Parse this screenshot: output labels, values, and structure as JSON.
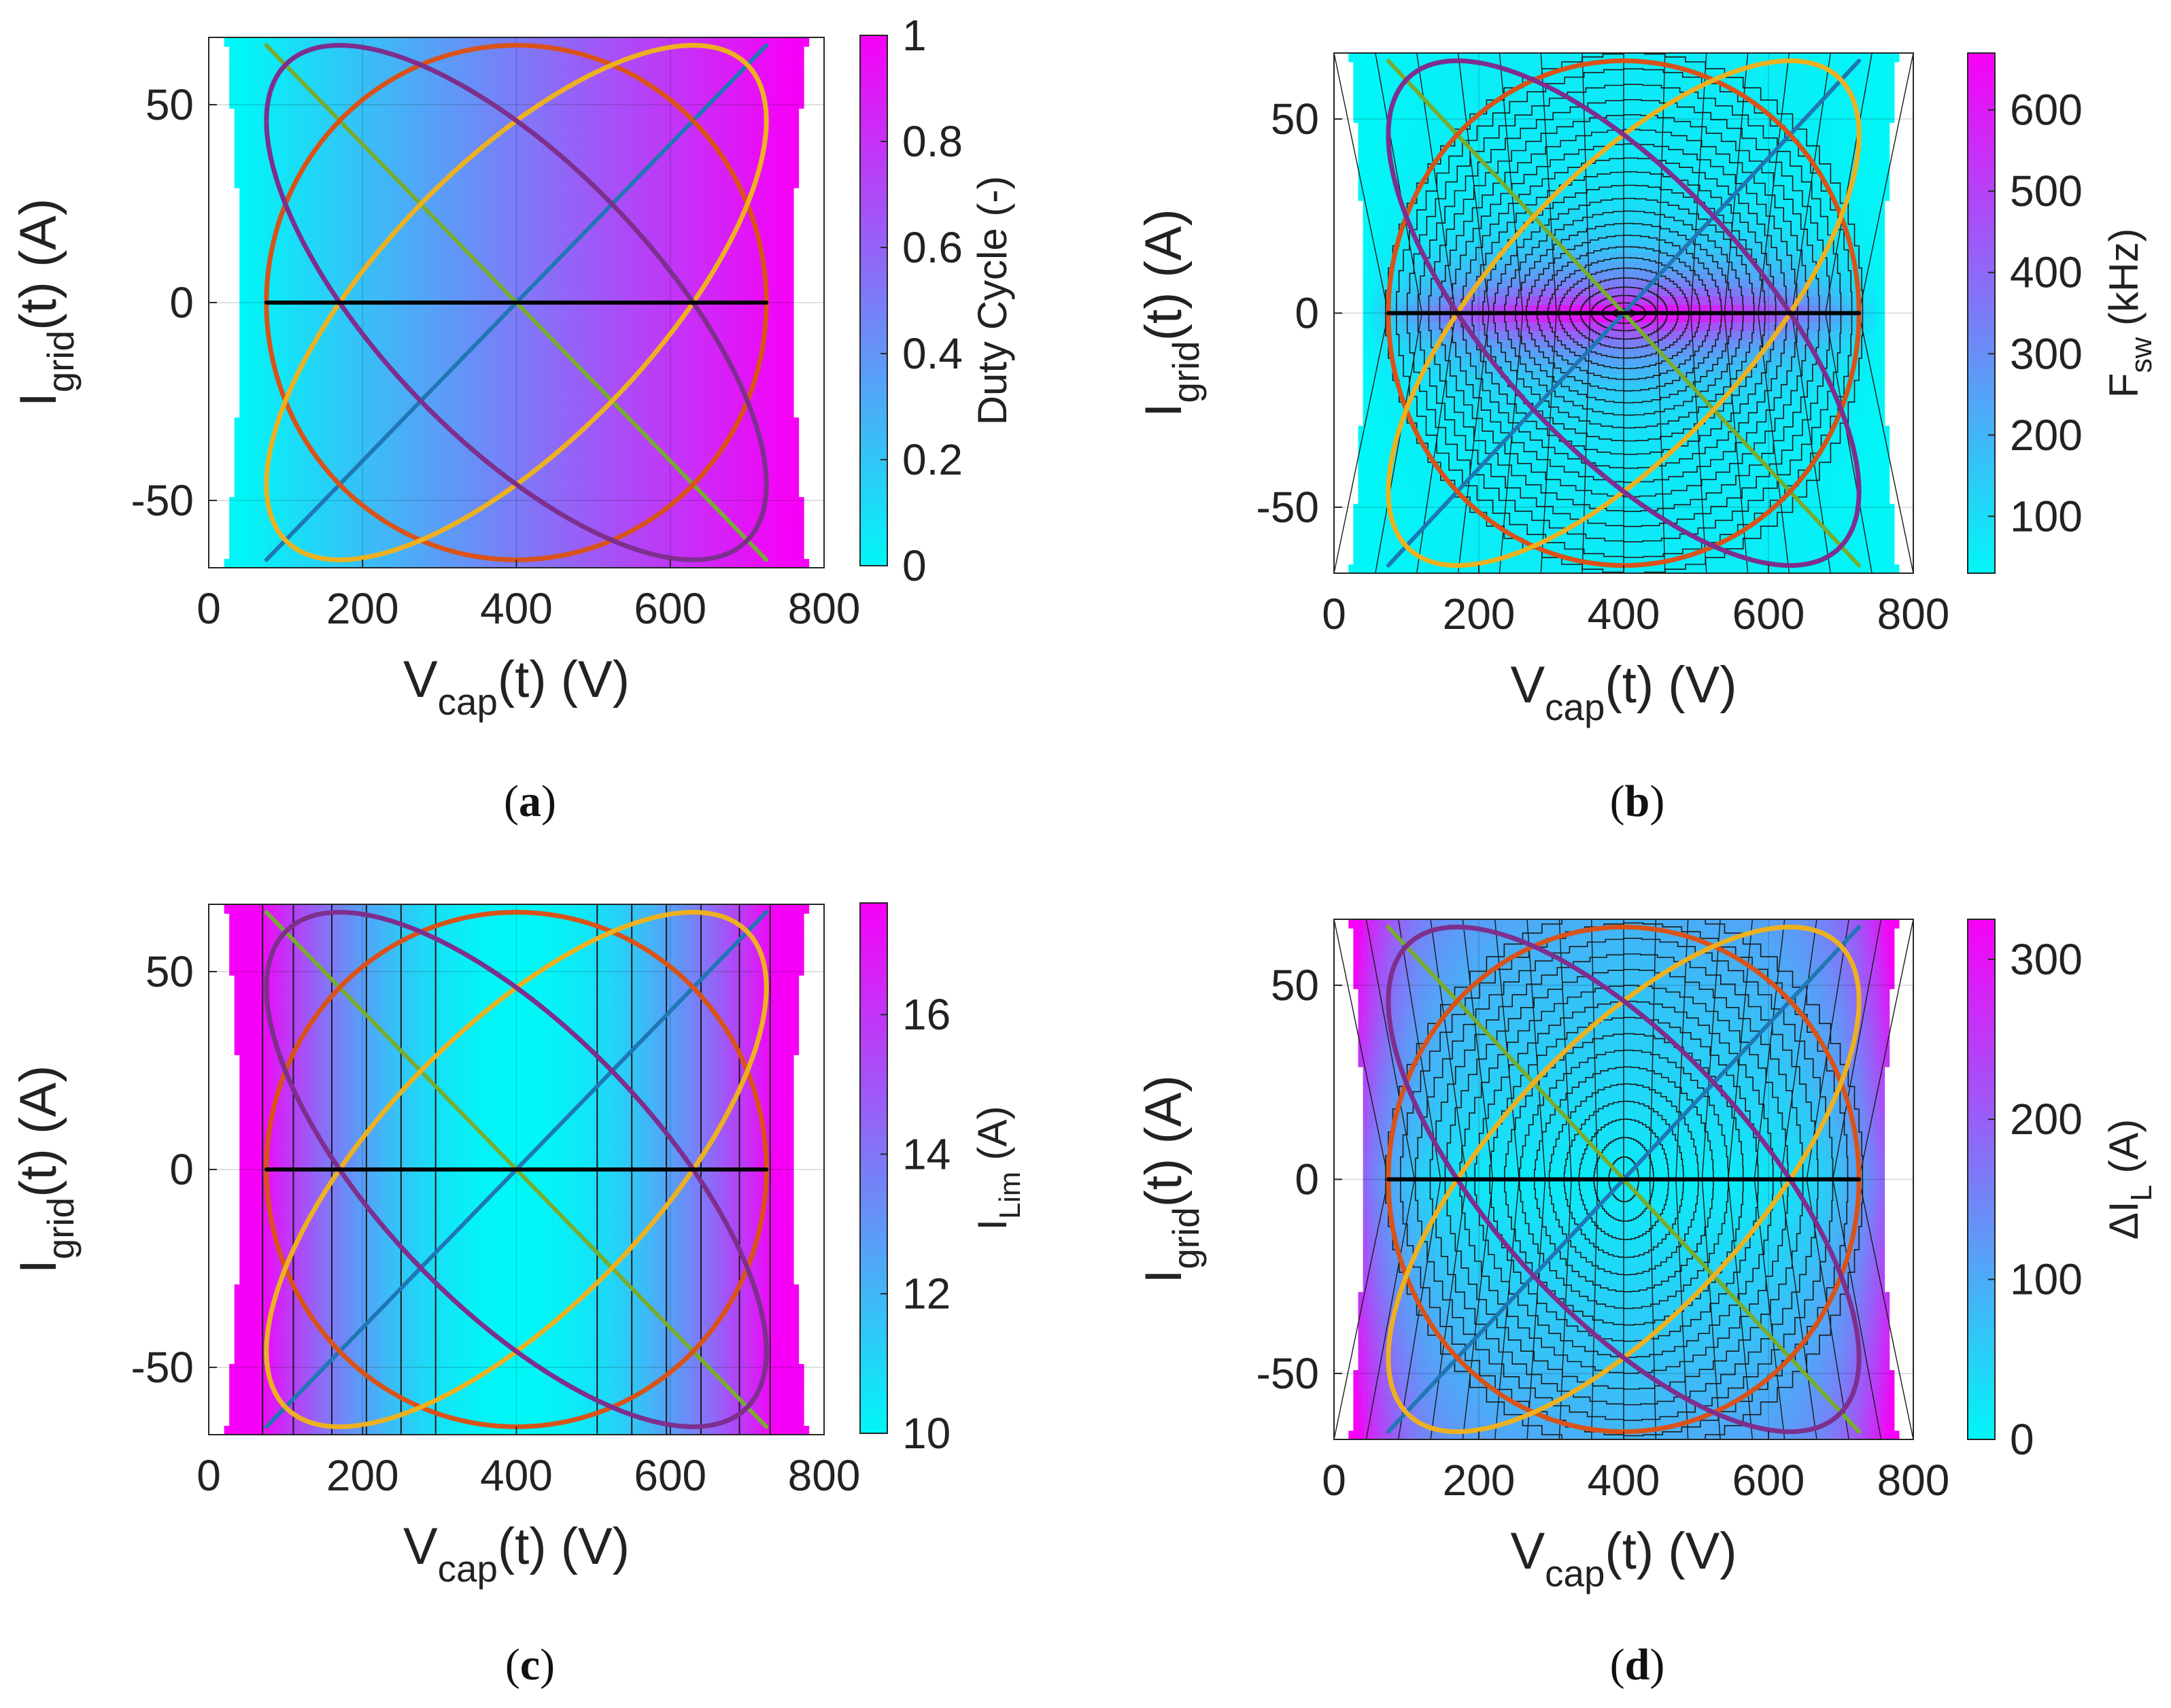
{
  "figure": {
    "panels": [
      "a",
      "b",
      "c",
      "d"
    ]
  },
  "colors": {
    "cyan": "#00f7f7",
    "magenta": "#f700f7",
    "blue_line": "#1f77b4",
    "orange_line": "#d95319",
    "yellow_line": "#edb120",
    "purple_line": "#7e2f8e",
    "green_line": "#77ac30",
    "black_line": "#000000"
  },
  "chart_data": [
    {
      "id": "a",
      "type": "heatmap",
      "caption": "(a)",
      "xlabel_main": "V",
      "xlabel_sub": "cap",
      "xlabel_suffix": "(t) (V)",
      "ylabel_main": "I",
      "ylabel_sub": "grid",
      "ylabel_suffix": "(t) (A)",
      "xlim": [
        0,
        800
      ],
      "ylim": [
        -67,
        67
      ],
      "xticks": [
        0,
        200,
        400,
        600,
        800
      ],
      "xtick_labels": [
        "0",
        "200",
        "400",
        "600",
        "800"
      ],
      "yticks": [
        -50,
        0,
        50
      ],
      "ytick_labels": [
        "-50",
        "0",
        "50"
      ],
      "colorbar": {
        "label_main": "Duty Cycle (-)",
        "label_sub": "",
        "label_suffix": "",
        "range": [
          0,
          1
        ],
        "ticks": [
          0,
          0.2,
          0.4,
          0.6,
          0.8,
          1
        ],
        "tick_labels": [
          "0",
          "0.2",
          "0.4",
          "0.6",
          "0.8",
          "1"
        ]
      },
      "field": "duty",
      "contours": "none",
      "trajectories": [
        {
          "name": "diagonal-up",
          "color": "#1f77b4",
          "kind": "line",
          "from": [
            75,
            -65
          ],
          "to": [
            725,
            65
          ]
        },
        {
          "name": "diagonal-down",
          "color": "#77ac30",
          "kind": "line",
          "from": [
            75,
            65
          ],
          "to": [
            725,
            -65
          ]
        },
        {
          "name": "circle",
          "color": "#d95319",
          "kind": "ellipse",
          "xc": 400,
          "xa": 325,
          "ia": 65,
          "phase_deg": 90
        },
        {
          "name": "ellipse-up",
          "color": "#edb120",
          "kind": "ellipse",
          "xc": 400,
          "xa": 325,
          "ia": 65,
          "phase_deg": 45
        },
        {
          "name": "ellipse-down",
          "color": "#7e2f8e",
          "kind": "ellipse",
          "xc": 400,
          "xa": 325,
          "ia": 65,
          "phase_deg": 135
        },
        {
          "name": "horizontal",
          "color": "#000000",
          "kind": "line",
          "from": [
            75,
            0
          ],
          "to": [
            725,
            0
          ]
        }
      ]
    },
    {
      "id": "b",
      "type": "heatmap",
      "caption": "(b)",
      "xlabel_main": "V",
      "xlabel_sub": "cap",
      "xlabel_suffix": "(t) (V)",
      "ylabel_main": "I",
      "ylabel_sub": "grid",
      "ylabel_suffix": "(t) (A)",
      "xlim": [
        0,
        800
      ],
      "ylim": [
        -67,
        67
      ],
      "xticks": [
        0,
        200,
        400,
        600,
        800
      ],
      "xtick_labels": [
        "0",
        "200",
        "400",
        "600",
        "800"
      ],
      "yticks": [
        -50,
        0,
        50
      ],
      "ytick_labels": [
        "-50",
        "0",
        "50"
      ],
      "colorbar": {
        "label_main": "F",
        "label_sub": "sw",
        "label_suffix": " (kHz)",
        "range": [
          30,
          670
        ],
        "ticks": [
          100,
          200,
          300,
          400,
          500,
          600
        ],
        "tick_labels": [
          "100",
          "200",
          "300",
          "400",
          "500",
          "600"
        ]
      },
      "field": "fsw",
      "contours": "fsw",
      "trajectories": [
        {
          "name": "diagonal-up",
          "color": "#1f77b4",
          "kind": "line",
          "from": [
            75,
            -65
          ],
          "to": [
            725,
            65
          ]
        },
        {
          "name": "diagonal-down",
          "color": "#77ac30",
          "kind": "line",
          "from": [
            75,
            65
          ],
          "to": [
            725,
            -65
          ]
        },
        {
          "name": "circle",
          "color": "#d95319",
          "kind": "ellipse",
          "xc": 400,
          "xa": 325,
          "ia": 65,
          "phase_deg": 90
        },
        {
          "name": "ellipse-up",
          "color": "#edb120",
          "kind": "ellipse",
          "xc": 400,
          "xa": 325,
          "ia": 65,
          "phase_deg": 45
        },
        {
          "name": "ellipse-down",
          "color": "#7e2f8e",
          "kind": "ellipse",
          "xc": 400,
          "xa": 325,
          "ia": 65,
          "phase_deg": 135
        },
        {
          "name": "horizontal",
          "color": "#000000",
          "kind": "line",
          "from": [
            75,
            0
          ],
          "to": [
            725,
            0
          ]
        }
      ]
    },
    {
      "id": "c",
      "type": "heatmap",
      "caption": "(c)",
      "xlabel_main": "V",
      "xlabel_sub": "cap",
      "xlabel_suffix": "(t) (V)",
      "ylabel_main": "I",
      "ylabel_sub": "grid",
      "ylabel_suffix": "(t) (A)",
      "xlim": [
        0,
        800
      ],
      "ylim": [
        -67,
        67
      ],
      "xticks": [
        0,
        200,
        400,
        600,
        800
      ],
      "xtick_labels": [
        "0",
        "200",
        "400",
        "600",
        "800"
      ],
      "yticks": [
        -50,
        0,
        50
      ],
      "ytick_labels": [
        "-50",
        "0",
        "50"
      ],
      "colorbar": {
        "label_main": "I",
        "label_sub": "Lim",
        "label_suffix": " (A)",
        "range": [
          10,
          17.6
        ],
        "ticks": [
          10,
          12,
          14,
          16
        ],
        "tick_labels": [
          "10",
          "12",
          "14",
          "16"
        ]
      },
      "field": "ilim",
      "contours": "vertical",
      "contour_x": [
        70,
        110,
        160,
        205,
        250,
        295,
        505,
        550,
        595,
        640,
        690,
        730
      ],
      "trajectories": [
        {
          "name": "diagonal-up",
          "color": "#1f77b4",
          "kind": "line",
          "from": [
            75,
            -65
          ],
          "to": [
            725,
            65
          ]
        },
        {
          "name": "diagonal-down",
          "color": "#77ac30",
          "kind": "line",
          "from": [
            75,
            65
          ],
          "to": [
            725,
            -65
          ]
        },
        {
          "name": "circle",
          "color": "#d95319",
          "kind": "ellipse",
          "xc": 400,
          "xa": 325,
          "ia": 65,
          "phase_deg": 90
        },
        {
          "name": "ellipse-up",
          "color": "#edb120",
          "kind": "ellipse",
          "xc": 400,
          "xa": 325,
          "ia": 65,
          "phase_deg": 45
        },
        {
          "name": "ellipse-down",
          "color": "#7e2f8e",
          "kind": "ellipse",
          "xc": 400,
          "xa": 325,
          "ia": 65,
          "phase_deg": 135
        },
        {
          "name": "horizontal",
          "color": "#000000",
          "kind": "line",
          "from": [
            75,
            0
          ],
          "to": [
            725,
            0
          ]
        }
      ]
    },
    {
      "id": "d",
      "type": "heatmap",
      "caption": "(d)",
      "xlabel_main": "V",
      "xlabel_sub": "cap",
      "xlabel_suffix": "(t) (V)",
      "ylabel_main": "I",
      "ylabel_sub": "grid",
      "ylabel_suffix": "(t) (A)",
      "xlim": [
        0,
        800
      ],
      "ylim": [
        -67,
        67
      ],
      "xticks": [
        0,
        200,
        400,
        600,
        800
      ],
      "xtick_labels": [
        "0",
        "200",
        "400",
        "600",
        "800"
      ],
      "yticks": [
        -50,
        0,
        50
      ],
      "ytick_labels": [
        "-50",
        "0",
        "50"
      ],
      "colorbar": {
        "label_main": "ΔI",
        "label_sub": "L",
        "label_suffix": " (A)",
        "range": [
          0,
          325
        ],
        "ticks": [
          0,
          100,
          200,
          300
        ],
        "tick_labels": [
          "0",
          "100",
          "200",
          "300"
        ]
      },
      "field": "dil",
      "contours": "dil",
      "trajectories": [
        {
          "name": "diagonal-up",
          "color": "#1f77b4",
          "kind": "line",
          "from": [
            75,
            -65
          ],
          "to": [
            725,
            65
          ]
        },
        {
          "name": "diagonal-down",
          "color": "#77ac30",
          "kind": "line",
          "from": [
            75,
            65
          ],
          "to": [
            725,
            -65
          ]
        },
        {
          "name": "circle",
          "color": "#d95319",
          "kind": "ellipse",
          "xc": 400,
          "xa": 325,
          "ia": 65,
          "phase_deg": 90
        },
        {
          "name": "ellipse-up",
          "color": "#edb120",
          "kind": "ellipse",
          "xc": 400,
          "xa": 325,
          "ia": 65,
          "phase_deg": 45
        },
        {
          "name": "ellipse-down",
          "color": "#7e2f8e",
          "kind": "ellipse",
          "xc": 400,
          "xa": 325,
          "ia": 65,
          "phase_deg": 135
        },
        {
          "name": "horizontal",
          "color": "#000000",
          "kind": "line",
          "from": [
            75,
            0
          ],
          "to": [
            725,
            0
          ]
        }
      ]
    }
  ]
}
